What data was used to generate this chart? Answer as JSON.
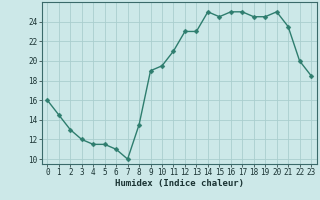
{
  "x": [
    0,
    1,
    2,
    3,
    4,
    5,
    6,
    7,
    8,
    9,
    10,
    11,
    12,
    13,
    14,
    15,
    16,
    17,
    18,
    19,
    20,
    21,
    22,
    23
  ],
  "y": [
    16,
    14.5,
    13,
    12,
    11.5,
    11.5,
    11,
    10,
    13.5,
    19,
    19.5,
    21,
    23,
    23,
    25,
    24.5,
    25,
    25,
    24.5,
    24.5,
    25,
    23.5,
    20,
    18.5
  ],
  "line_color": "#2e7d6e",
  "marker_color": "#2e7d6e",
  "bg_color": "#cce8e8",
  "grid_color": "#aacece",
  "xlabel": "Humidex (Indice chaleur)",
  "xlim": [
    -0.5,
    23.5
  ],
  "ylim": [
    9.5,
    26.0
  ],
  "yticks": [
    10,
    12,
    14,
    16,
    18,
    20,
    22,
    24
  ],
  "xticks": [
    0,
    1,
    2,
    3,
    4,
    5,
    6,
    7,
    8,
    9,
    10,
    11,
    12,
    13,
    14,
    15,
    16,
    17,
    18,
    19,
    20,
    21,
    22,
    23
  ],
  "marker_size": 2.5,
  "line_width": 1.0,
  "tick_fontsize": 5.5,
  "xlabel_fontsize": 6.5
}
